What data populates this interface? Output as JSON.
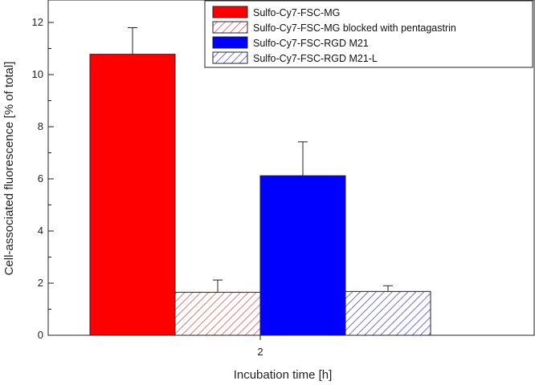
{
  "chart_data": {
    "type": "bar",
    "categories": [
      "2"
    ],
    "xlabel": "Incubation time [h]",
    "ylabel": "Cell-associated fluorescence [% of total]",
    "ylim": [
      0,
      12
    ],
    "yticks": [
      0,
      2,
      4,
      6,
      8,
      10,
      12
    ],
    "grid": false,
    "legend_position": "top-right",
    "series": [
      {
        "name": "Sulfo-Cy7-FSC-MG",
        "values": [
          10.78
        ],
        "error": [
          1.02
        ],
        "color": "#ff0000",
        "fill": "solid"
      },
      {
        "name": "Sulfo-Cy7-FSC-MG blocked with pentagastrin",
        "values": [
          1.65
        ],
        "error": [
          0.47
        ],
        "color": "#e05555",
        "fill": "hatched"
      },
      {
        "name": "Sulfo-Cy7-FSC-RGD M21",
        "values": [
          6.12
        ],
        "error": [
          1.3
        ],
        "color": "#0000ff",
        "fill": "solid"
      },
      {
        "name": "Sulfo-Cy7-FSC-RGD M21-L",
        "values": [
          1.68
        ],
        "error": [
          0.22
        ],
        "color": "#4a4ae0",
        "fill": "hatched"
      }
    ]
  }
}
